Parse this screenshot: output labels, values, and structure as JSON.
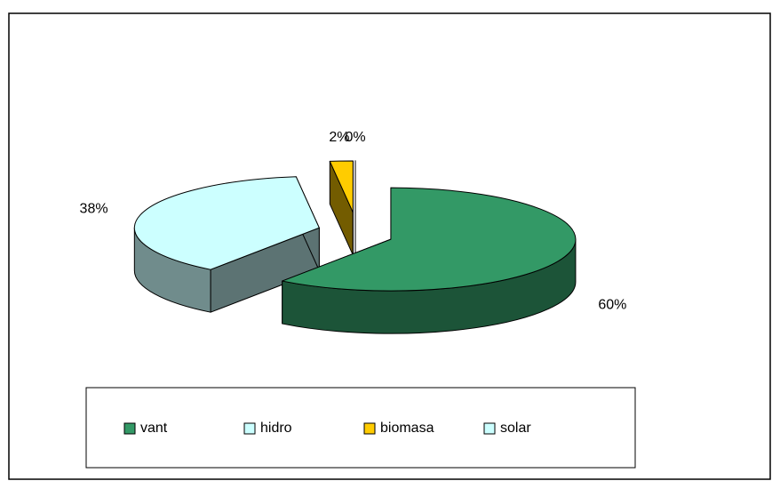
{
  "chart_data": {
    "type": "pie",
    "categories": [
      "vant",
      "hidro",
      "biomasa",
      "solar"
    ],
    "values": [
      60,
      38,
      2,
      0
    ],
    "value_labels": [
      "60%",
      "38%",
      "2%",
      "0%"
    ],
    "colors": [
      "#339966",
      "#CCFFFF",
      "#FFCC00",
      "#CCFFFF"
    ],
    "legend": "bottom",
    "three_d": true,
    "exploded": true
  }
}
